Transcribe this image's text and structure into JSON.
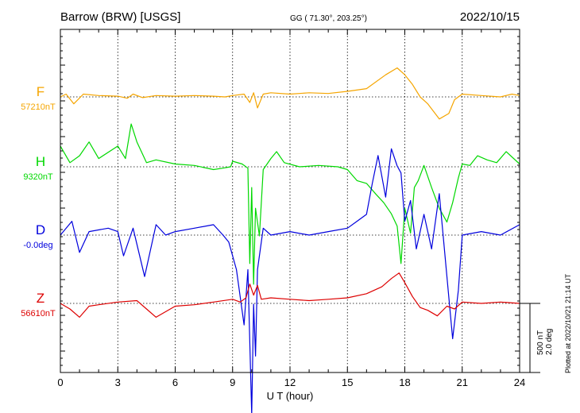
{
  "header": {
    "station": "Barrow (BRW)  [USGS]",
    "coords": "GG ( 71.30°, 203.25°)",
    "date": "2022/10/15"
  },
  "footer": {
    "plotted": "Plotted at 2022/10/21 21:14 UT"
  },
  "colors": {
    "F": "#f5a500",
    "H": "#00d800",
    "D": "#0000dd",
    "Z": "#dd0000",
    "axis": "#000000"
  },
  "chart_data": {
    "type": "line",
    "xlabel": "U T (hour)",
    "xlim": [
      0,
      24
    ],
    "xticks": [
      "0",
      "3",
      "6",
      "9",
      "12",
      "15",
      "18",
      "21",
      "24"
    ],
    "scale": {
      "amplitude": "500 nT",
      "angle": "2.0 deg"
    },
    "series": [
      {
        "name": "F",
        "baseline": "57210nT",
        "unit": "nT",
        "points": [
          [
            0,
            0
          ],
          [
            0.3,
            20
          ],
          [
            0.7,
            -50
          ],
          [
            1.2,
            20
          ],
          [
            2,
            10
          ],
          [
            3,
            5
          ],
          [
            3.5,
            -10
          ],
          [
            3.8,
            20
          ],
          [
            4.3,
            -5
          ],
          [
            5,
            10
          ],
          [
            6,
            5
          ],
          [
            7,
            10
          ],
          [
            8,
            5
          ],
          [
            8.6,
            0
          ],
          [
            9,
            10
          ],
          [
            9.6,
            20
          ],
          [
            9.9,
            -40
          ],
          [
            10.1,
            30
          ],
          [
            10.3,
            -80
          ],
          [
            10.6,
            20
          ],
          [
            11,
            30
          ],
          [
            12,
            20
          ],
          [
            13,
            30
          ],
          [
            14,
            25
          ],
          [
            15,
            40
          ],
          [
            16,
            60
          ],
          [
            17,
            160
          ],
          [
            17.6,
            210
          ],
          [
            18,
            160
          ],
          [
            18.4,
            90
          ],
          [
            18.8,
            0
          ],
          [
            19.2,
            -50
          ],
          [
            19.8,
            -160
          ],
          [
            20.3,
            -120
          ],
          [
            20.6,
            -20
          ],
          [
            21,
            20
          ],
          [
            22,
            10
          ],
          [
            23,
            0
          ],
          [
            23.6,
            20
          ],
          [
            24,
            10
          ]
        ]
      },
      {
        "name": "H",
        "baseline": "9320nT",
        "unit": "nT",
        "points": [
          [
            0,
            150
          ],
          [
            0.5,
            30
          ],
          [
            1,
            80
          ],
          [
            1.5,
            180
          ],
          [
            2,
            60
          ],
          [
            3,
            150
          ],
          [
            3.4,
            60
          ],
          [
            3.7,
            310
          ],
          [
            4,
            180
          ],
          [
            4.5,
            30
          ],
          [
            5,
            50
          ],
          [
            6,
            20
          ],
          [
            7,
            10
          ],
          [
            8,
            -20
          ],
          [
            8.5,
            -10
          ],
          [
            8.9,
            0
          ],
          [
            9,
            40
          ],
          [
            9.5,
            20
          ],
          [
            9.8,
            -10
          ],
          [
            9.9,
            -700
          ],
          [
            10,
            -150
          ],
          [
            10.1,
            -850
          ],
          [
            10.2,
            -300
          ],
          [
            10.4,
            -500
          ],
          [
            10.6,
            -20
          ],
          [
            11,
            60
          ],
          [
            11.3,
            110
          ],
          [
            11.7,
            30
          ],
          [
            12.5,
            0
          ],
          [
            13.5,
            10
          ],
          [
            14.5,
            0
          ],
          [
            15,
            -20
          ],
          [
            15.5,
            -100
          ],
          [
            16,
            -120
          ],
          [
            16.5,
            -200
          ],
          [
            16.9,
            -260
          ],
          [
            17.3,
            -340
          ],
          [
            17.6,
            -430
          ],
          [
            17.8,
            -700
          ],
          [
            18,
            -300
          ],
          [
            18.3,
            -480
          ],
          [
            18.5,
            -150
          ],
          [
            18.7,
            -100
          ],
          [
            19,
            10
          ],
          [
            19.4,
            -150
          ],
          [
            19.8,
            -300
          ],
          [
            20.2,
            -400
          ],
          [
            20.5,
            -260
          ],
          [
            20.8,
            -80
          ],
          [
            21,
            20
          ],
          [
            21.4,
            10
          ],
          [
            21.8,
            80
          ],
          [
            22.3,
            50
          ],
          [
            22.8,
            30
          ],
          [
            23.3,
            110
          ],
          [
            24,
            20
          ]
        ]
      },
      {
        "name": "D",
        "baseline": "-0.0deg",
        "unit": "deg",
        "points": [
          [
            0,
            0
          ],
          [
            0.6,
            40
          ],
          [
            1,
            -50
          ],
          [
            1.5,
            10
          ],
          [
            2.5,
            20
          ],
          [
            3,
            10
          ],
          [
            3.3,
            -60
          ],
          [
            3.8,
            20
          ],
          [
            4.4,
            -120
          ],
          [
            5,
            30
          ],
          [
            5.5,
            0
          ],
          [
            6,
            10
          ],
          [
            7,
            20
          ],
          [
            8,
            30
          ],
          [
            8.5,
            0
          ],
          [
            8.8,
            -20
          ],
          [
            9.2,
            -100
          ],
          [
            9.6,
            -260
          ],
          [
            9.8,
            -100
          ],
          [
            10,
            -520
          ],
          [
            10.1,
            -200
          ],
          [
            10.2,
            -350
          ],
          [
            10.3,
            -100
          ],
          [
            10.6,
            20
          ],
          [
            11,
            0
          ],
          [
            12,
            10
          ],
          [
            13,
            0
          ],
          [
            14,
            10
          ],
          [
            15,
            20
          ],
          [
            15.5,
            40
          ],
          [
            16,
            60
          ],
          [
            16.3,
            150
          ],
          [
            16.6,
            230
          ],
          [
            17,
            110
          ],
          [
            17.3,
            250
          ],
          [
            17.6,
            200
          ],
          [
            17.8,
            180
          ],
          [
            18,
            40
          ],
          [
            18.3,
            100
          ],
          [
            18.6,
            -40
          ],
          [
            19,
            60
          ],
          [
            19.4,
            -40
          ],
          [
            19.8,
            120
          ],
          [
            20.2,
            -120
          ],
          [
            20.5,
            -300
          ],
          [
            20.8,
            -160
          ],
          [
            21,
            0
          ],
          [
            22,
            10
          ],
          [
            23,
            0
          ],
          [
            24,
            30
          ]
        ]
      },
      {
        "name": "Z",
        "baseline": "56610nT",
        "unit": "nT",
        "points": [
          [
            0,
            0
          ],
          [
            0.5,
            -40
          ],
          [
            1,
            -100
          ],
          [
            1.5,
            -20
          ],
          [
            2,
            -10
          ],
          [
            3,
            10
          ],
          [
            4,
            20
          ],
          [
            4.5,
            -40
          ],
          [
            5,
            -100
          ],
          [
            6,
            -20
          ],
          [
            7,
            -10
          ],
          [
            8,
            10
          ],
          [
            9,
            30
          ],
          [
            9.4,
            10
          ],
          [
            9.7,
            40
          ],
          [
            9.9,
            140
          ],
          [
            10.1,
            60
          ],
          [
            10.3,
            130
          ],
          [
            10.5,
            30
          ],
          [
            11,
            40
          ],
          [
            12,
            30
          ],
          [
            13,
            20
          ],
          [
            14,
            30
          ],
          [
            15,
            40
          ],
          [
            16,
            70
          ],
          [
            16.8,
            120
          ],
          [
            17.3,
            180
          ],
          [
            17.7,
            220
          ],
          [
            18,
            150
          ],
          [
            18.4,
            50
          ],
          [
            18.8,
            -30
          ],
          [
            19.2,
            -50
          ],
          [
            19.7,
            -90
          ],
          [
            20.2,
            -20
          ],
          [
            20.6,
            -40
          ],
          [
            21,
            10
          ],
          [
            22,
            0
          ],
          [
            23,
            10
          ],
          [
            24,
            0
          ]
        ]
      }
    ]
  }
}
